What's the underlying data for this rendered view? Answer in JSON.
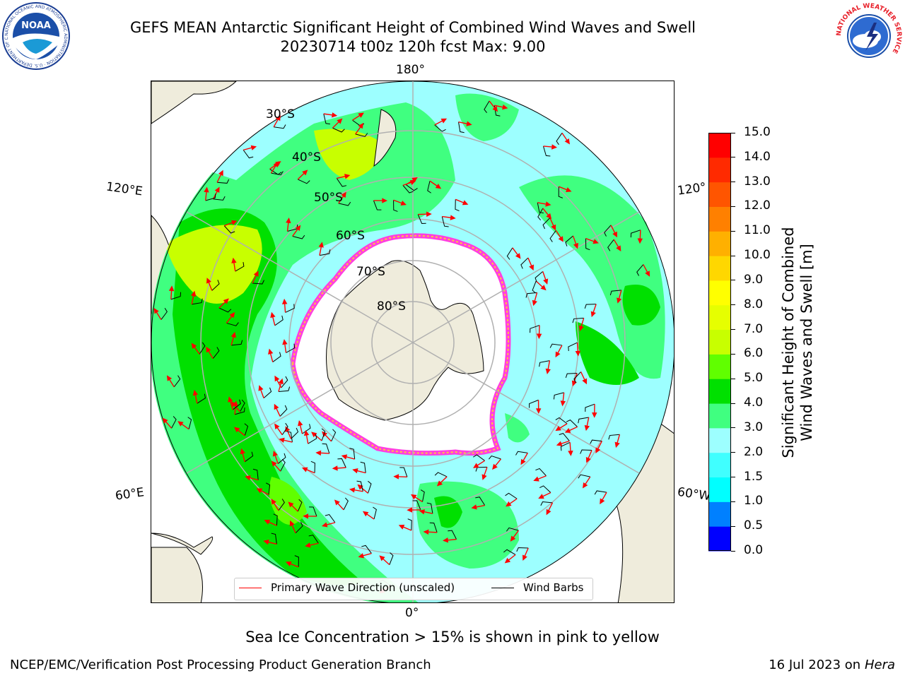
{
  "title": {
    "line1": "GEFS MEAN Antarctic Significant Height of Combined Wind Waves and Swell",
    "line2": "20230714 t00z 120h fcst   Max: 9.00"
  },
  "map": {
    "lon_labels": {
      "top": "180°",
      "bottom": "0°",
      "upper_left": "120°E",
      "upper_right": "120°",
      "lower_left": "60°E",
      "lower_right": "60°W"
    },
    "lat_labels": [
      "30°S",
      "40°S",
      "50°S",
      "60°S",
      "70°S",
      "80°S"
    ],
    "land_color": "#efecdc",
    "ocean_base_color": "#9dffff",
    "ice_color": "#ffffff",
    "ice_edge_colors": [
      "#ff3fe0",
      "#ffc83c"
    ]
  },
  "colorbar": {
    "title_line1": "Significant Height of Combined",
    "title_line2": "Wind Waves and Swell [m]",
    "ticks": [
      "0.0",
      "0.5",
      "1.0",
      "1.5",
      "2.0",
      "3.0",
      "4.0",
      "5.0",
      "6.0",
      "7.0",
      "8.0",
      "9.0",
      "10.0",
      "11.0",
      "12.0",
      "13.0",
      "14.0",
      "15.0"
    ],
    "colors": [
      "#0000ff",
      "#0080ff",
      "#00ffff",
      "#40ffff",
      "#9dffff",
      "#40ff80",
      "#00e000",
      "#60ff00",
      "#c8ff00",
      "#e6ff00",
      "#ffff00",
      "#ffd700",
      "#ffb000",
      "#ff8000",
      "#ff5500",
      "#ff2a00",
      "#ff0000"
    ]
  },
  "legend": {
    "wave_dir_label": "Primary Wave Direction (unscaled)",
    "wave_dir_color": "#ff0000",
    "wind_barbs_label": "Wind Barbs",
    "wind_barbs_color": "#000000"
  },
  "note": "Sea Ice Concentration > 15% is shown in pink to yellow",
  "footer": {
    "left": "NCEP/EMC/Verification Post Processing Product Generation Branch",
    "right_prefix": "16 Jul 2023 on ",
    "right_host": "Hera"
  },
  "logos": {
    "noaa_text": "NOAA",
    "noaa_ring": "NATIONAL OCEANIC AND ATMOSPHERIC ADMINISTRATION · U.S. DEPARTMENT OF COMMERCE",
    "nws_ring": "NATIONAL WEATHER SERVICE"
  }
}
